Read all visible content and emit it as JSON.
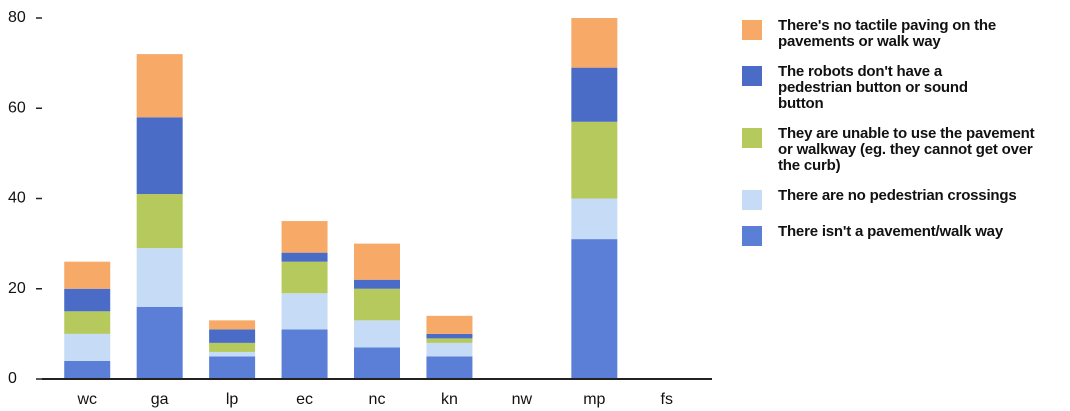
{
  "chart_data": {
    "type": "stacked_bar",
    "categories": [
      "wc",
      "ga",
      "lp",
      "ec",
      "nc",
      "kn",
      "nw",
      "mp",
      "fs"
    ],
    "series": [
      {
        "name": "There isn't a pavement/walk way",
        "color": "#5b7fd6",
        "values": [
          4,
          16,
          5,
          11,
          7,
          5,
          0,
          31,
          0
        ]
      },
      {
        "name": "There are no pedestrian crossings",
        "color": "#c6dcf6",
        "values": [
          6,
          13,
          1,
          8,
          6,
          3,
          0,
          9,
          0
        ]
      },
      {
        "name": "They are unable to use the pavement or walkway (eg. they cannot get over the curb)",
        "color": "#b6c95c",
        "values": [
          5,
          12,
          2,
          7,
          7,
          1,
          0,
          17,
          0
        ]
      },
      {
        "name": "The robots don't have a pedestrian button or sound button",
        "color": "#4a6cc6",
        "values": [
          5,
          17,
          3,
          2,
          2,
          1,
          0,
          12,
          0
        ]
      },
      {
        "name": "There's no tactile paving on the pavements or walk way",
        "color": "#f7a968",
        "values": [
          6,
          14,
          2,
          7,
          8,
          4,
          0,
          11,
          0
        ]
      }
    ],
    "ylim": [
      0,
      80
    ],
    "yticks": [
      0,
      20,
      40,
      60,
      80
    ],
    "grid": false,
    "legend": "right"
  }
}
